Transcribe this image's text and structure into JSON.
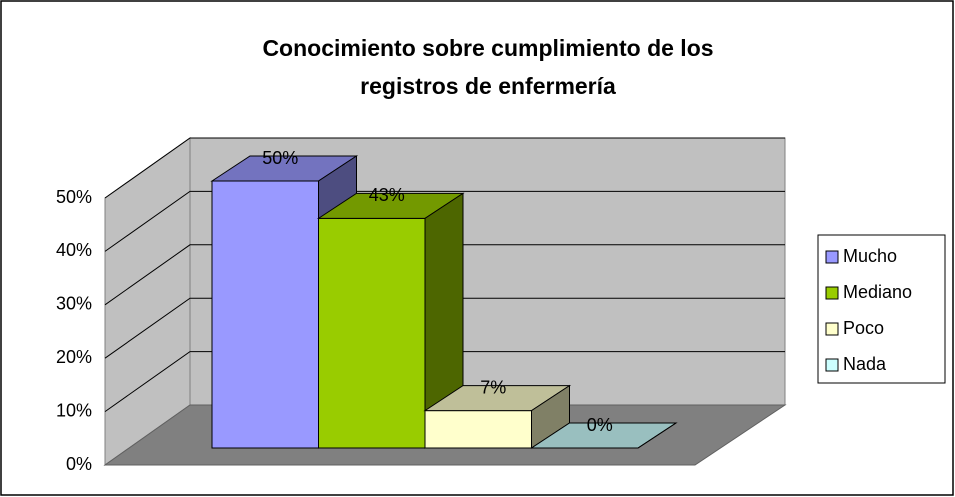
{
  "chart_data": {
    "type": "bar3d",
    "title": [
      "Conocimiento sobre cumplimiento de los",
      "registros de enfermería"
    ],
    "categories": [
      null
    ],
    "series": [
      {
        "name": "Mucho",
        "color": "#9999ff",
        "values": [
          50
        ],
        "value_labels": [
          "50%"
        ]
      },
      {
        "name": "Mediano",
        "color": "#99cc00",
        "values": [
          43
        ],
        "value_labels": [
          "43%"
        ]
      },
      {
        "name": "Poco",
        "color": "#ffffcc",
        "values": [
          7
        ],
        "value_labels": [
          "7%"
        ]
      },
      {
        "name": "Nada",
        "color": "#ccffff",
        "values": [
          0
        ],
        "value_labels": [
          "0%"
        ]
      }
    ],
    "ylim": [
      0,
      50
    ],
    "yticks": [
      {
        "value": 0,
        "label": "0%"
      },
      {
        "value": 10,
        "label": "10%"
      },
      {
        "value": 20,
        "label": "20%"
      },
      {
        "value": 30,
        "label": "30%"
      },
      {
        "value": 40,
        "label": "40%"
      },
      {
        "value": 50,
        "label": "50%"
      }
    ],
    "grid": true,
    "legend": "right"
  }
}
